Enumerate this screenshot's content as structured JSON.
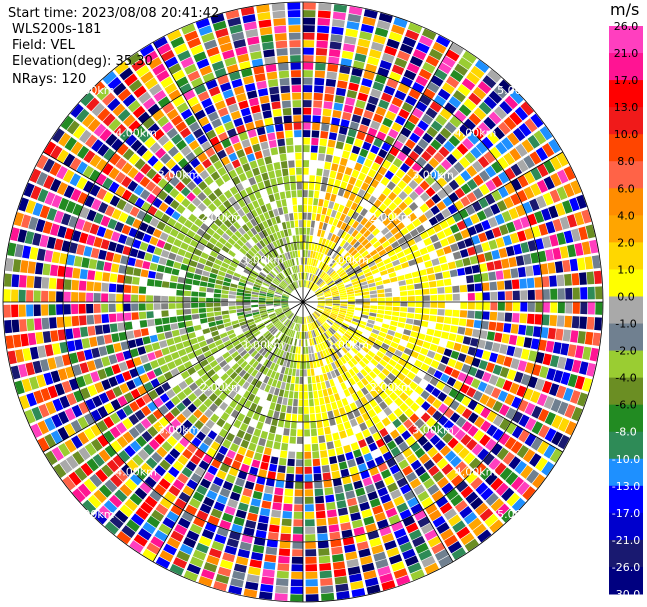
{
  "info": {
    "start_time": "Start time: 2023/08/08 20:41:42",
    "station": "WLS200s-181",
    "field": "Field: VEL",
    "elevation": "Elevation(deg): 35.30",
    "nrays": "NRays: 120"
  },
  "range_rings": {
    "labels": [
      "1.00km",
      "2.00km",
      "3.00km",
      "4.00km",
      "5.00km"
    ]
  },
  "colorbar": {
    "unit": "m/s",
    "ticks": [
      "26.0",
      "21.0",
      "17.0",
      "13.0",
      "10.0",
      "8.0",
      "6.0",
      "4.0",
      "2.0",
      "1.0",
      "0.0",
      "-1.0",
      "-2.0",
      "-4.0",
      "-6.0",
      "-8.0",
      "-10.0",
      "-13.0",
      "-17.0",
      "-21.0",
      "-26.0",
      "-30.0"
    ],
    "colors": [
      "#ff3fbf",
      "#ff1493",
      "#ff0000",
      "#f01a1a",
      "#ff4500",
      "#ff6347",
      "#ff8c00",
      "#ffa500",
      "#ffd700",
      "#ffff00",
      "#a9a9a9",
      "#708090",
      "#9acd32",
      "#6b8e23",
      "#228b22",
      "#2e8b57",
      "#1e90ff",
      "#0000ff",
      "#0000cd",
      "#191970",
      "#000080",
      "#000066"
    ]
  },
  "chart_data": {
    "type": "heatmap",
    "title": "",
    "field": "VEL",
    "units": "m/s",
    "nrays": 120,
    "elevation_deg": 35.3,
    "range_km": [
      0,
      5
    ],
    "colorbar_ticks": [
      26.0,
      21.0,
      17.0,
      13.0,
      10.0,
      8.0,
      6.0,
      4.0,
      2.0,
      1.0,
      0.0,
      -1.0,
      -2.0,
      -4.0,
      -6.0,
      -8.0,
      -10.0,
      -13.0,
      -17.0,
      -21.0,
      -26.0,
      -30.0
    ],
    "pattern": {
      "inner_noise_free_km": 2.5,
      "positive_sector_deg": [
        20,
        160
      ],
      "negative_sector_deg": [
        200,
        340
      ]
    }
  }
}
